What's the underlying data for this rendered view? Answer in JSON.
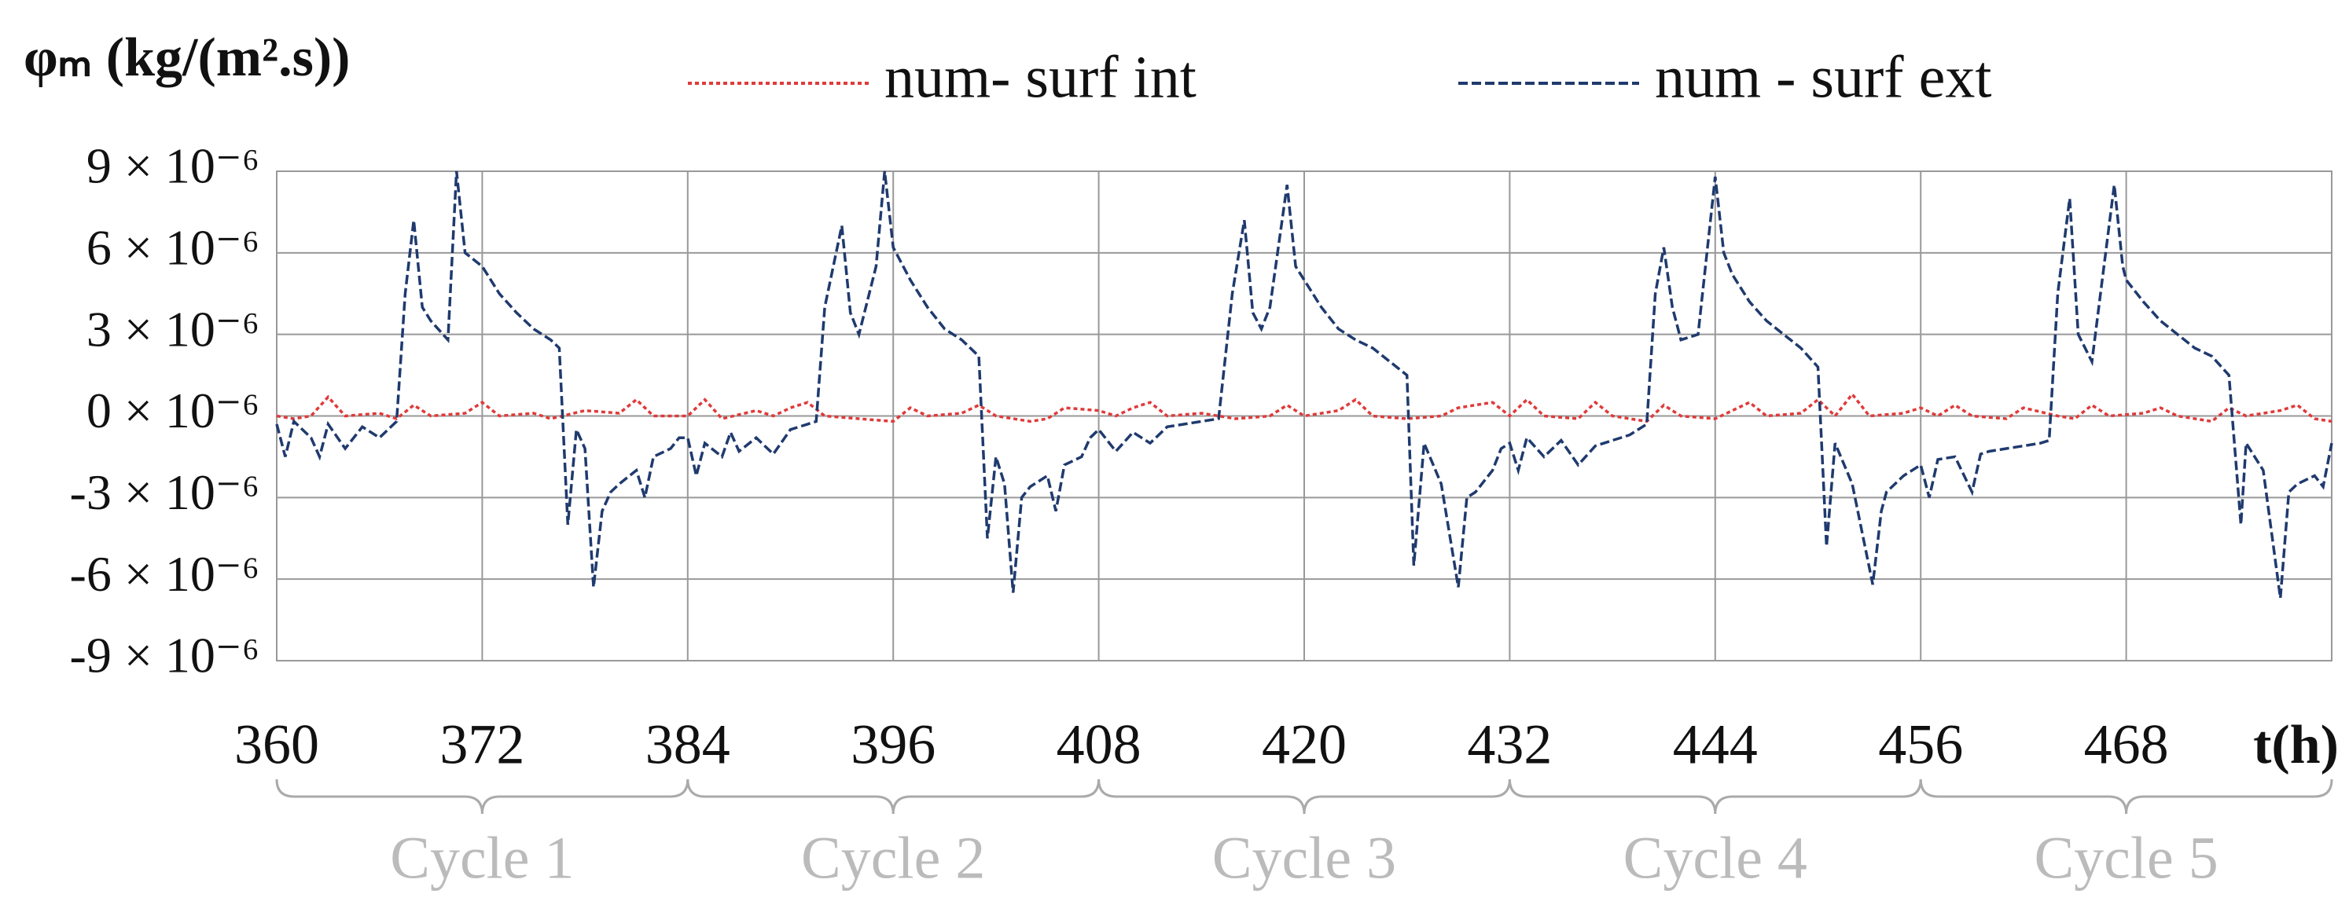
{
  "chart_data": {
    "type": "line",
    "y_label": "φₘ (kg/(m².s))",
    "x_label": "t(h)",
    "xlim": [
      360,
      480
    ],
    "xticks": [
      360,
      372,
      384,
      396,
      408,
      420,
      432,
      444,
      456,
      468
    ],
    "ylim": [
      -9e-06,
      9e-06
    ],
    "yticks": [
      {
        "value": -9e-06,
        "label": "-9 × 10⁻⁶"
      },
      {
        "value": -6e-06,
        "label": "-6 × 10⁻⁶"
      },
      {
        "value": -3e-06,
        "label": "-3 × 10⁻⁶"
      },
      {
        "value": 0,
        "label": "0 × 10⁻⁶"
      },
      {
        "value": 3e-06,
        "label": "3 × 10⁻⁶"
      },
      {
        "value": 6e-06,
        "label": "6 × 10⁻⁶"
      },
      {
        "value": 9e-06,
        "label": "9 × 10⁻⁶"
      }
    ],
    "grid": true,
    "cycles": [
      {
        "label": "Cycle 1",
        "range": [
          360,
          384
        ]
      },
      {
        "label": "Cycle 2",
        "range": [
          384,
          408
        ]
      },
      {
        "label": "Cycle 3",
        "range": [
          408,
          432
        ]
      },
      {
        "label": "Cycle 4",
        "range": [
          432,
          456
        ]
      },
      {
        "label": "Cycle 5",
        "range": [
          456,
          480
        ]
      }
    ],
    "series": [
      {
        "name": "num- surf int",
        "color": "#e03a3a",
        "style": "dotted",
        "x": [
          360,
          361,
          362,
          363,
          364,
          366,
          367,
          368,
          369,
          371,
          372,
          373,
          375,
          376,
          378,
          380,
          381,
          382,
          384,
          385,
          386,
          388,
          389,
          390,
          391,
          392,
          394,
          396,
          397,
          398,
          400,
          401,
          402,
          404,
          405,
          406,
          408,
          409,
          410,
          411,
          412,
          414,
          416,
          418,
          419,
          420,
          422,
          423,
          424,
          426,
          428,
          429,
          431,
          432,
          433,
          434,
          436,
          437,
          438,
          440,
          441,
          442,
          444,
          445,
          446,
          447,
          449,
          450,
          451,
          452,
          453,
          455,
          456,
          457,
          458,
          459,
          461,
          462,
          464,
          465,
          466,
          467,
          469,
          470,
          471,
          473,
          474,
          475,
          477,
          478,
          479,
          480
        ],
        "values": [
          0,
          -1e-07,
          0,
          7e-07,
          0,
          1e-07,
          -1e-07,
          4e-07,
          0,
          1e-07,
          5e-07,
          0,
          1e-07,
          -1e-07,
          2e-07,
          1e-07,
          6e-07,
          0,
          0,
          6e-07,
          -1e-07,
          2e-07,
          0,
          3e-07,
          5e-07,
          0,
          -1e-07,
          -2e-07,
          3e-07,
          0,
          1e-07,
          4e-07,
          0,
          -2e-07,
          -1e-07,
          3e-07,
          2e-07,
          0,
          3e-07,
          5e-07,
          0,
          1e-07,
          -1e-07,
          0,
          4e-07,
          0,
          2e-07,
          6e-07,
          0,
          -1e-07,
          0,
          3e-07,
          5e-07,
          0,
          6e-07,
          0,
          -1e-07,
          5e-07,
          0,
          -2e-07,
          4e-07,
          0,
          -1e-07,
          2e-07,
          5e-07,
          0,
          1e-07,
          6e-07,
          0,
          8e-07,
          0,
          1e-07,
          3e-07,
          0,
          4e-07,
          0,
          -1e-07,
          3e-07,
          0,
          -1e-07,
          4e-07,
          0,
          1e-07,
          3e-07,
          0,
          -2e-07,
          3e-07,
          0,
          2e-07,
          4e-07,
          -1e-07,
          -2e-07
        ]
      },
      {
        "name": "num - surf ext",
        "color": "#1f3a6e",
        "style": "dashed",
        "x": [
          360,
          360.5,
          361,
          362,
          362.5,
          363,
          364,
          365,
          366,
          367,
          367.5,
          368,
          368.5,
          369,
          370,
          370.5,
          371,
          372,
          373,
          374,
          375,
          376,
          376.5,
          377,
          377.5,
          378,
          378.5,
          379,
          379.5,
          380,
          381,
          381.5,
          382,
          383,
          383.5,
          384,
          384.5,
          385,
          386,
          386.5,
          387,
          388,
          389,
          390,
          391,
          391.5,
          392,
          393,
          393.5,
          394,
          395,
          395.5,
          396,
          397,
          398,
          399,
          400,
          401,
          401.5,
          402,
          402.5,
          403,
          403.5,
          404,
          405,
          405.5,
          406,
          407,
          407.5,
          408,
          409,
          410,
          411,
          412,
          413,
          414,
          415,
          415.8,
          416.5,
          417,
          417.5,
          418,
          419,
          419.5,
          420,
          421,
          422,
          423,
          424,
          425,
          426,
          426.4,
          427,
          428,
          429,
          429.5,
          430,
          431,
          431.5,
          432,
          432.5,
          433,
          434,
          435,
          436,
          437,
          438,
          439,
          440,
          440.5,
          441,
          441.5,
          442,
          443,
          444,
          444.5,
          445,
          446,
          447,
          448,
          449,
          450,
          450.5,
          451,
          452,
          453.2,
          453.7,
          454,
          455,
          456,
          456.5,
          457,
          458,
          459,
          459.5,
          460,
          461,
          462,
          463,
          463.5,
          464,
          464.7,
          465.2,
          466,
          466.5,
          467.3,
          467.8,
          468,
          469,
          470,
          471,
          472,
          473,
          474,
          474.7,
          475,
          476,
          477,
          477.5,
          478,
          479,
          479.5,
          480
        ],
        "values": [
          -3e-07,
          -1.5e-06,
          -2e-07,
          -8e-07,
          -1.5e-06,
          -3e-07,
          -1.2e-06,
          -4e-07,
          -8e-07,
          -2e-07,
          4.5e-06,
          7.2e-06,
          4e-06,
          3.5e-06,
          2.8e-06,
          9e-06,
          6e-06,
          5.5e-06,
          4.5e-06,
          3.8e-06,
          3.2e-06,
          2.8e-06,
          2.5e-06,
          -4e-06,
          -5e-07,
          -1.2e-06,
          -6.3e-06,
          -3.5e-06,
          -2.8e-06,
          -2.5e-06,
          -2e-06,
          -3e-06,
          -1.5e-06,
          -1.2e-06,
          -8e-07,
          -8e-07,
          -2.2e-06,
          -1e-06,
          -1.5e-06,
          -6e-07,
          -1.3e-06,
          -8e-07,
          -1.4e-06,
          -5e-07,
          -3e-07,
          -2e-07,
          4e-06,
          7e-06,
          3.8e-06,
          3e-06,
          5.5e-06,
          9e-06,
          6.2e-06,
          5e-06,
          4e-06,
          3.2e-06,
          2.8e-06,
          2.2e-06,
          -4.5e-06,
          -1.5e-06,
          -2.5e-06,
          -6.5e-06,
          -3e-06,
          -2.6e-06,
          -2.2e-06,
          -3.5e-06,
          -1.8e-06,
          -1.5e-06,
          -8e-07,
          -5e-07,
          -1.3e-06,
          -6e-07,
          -1e-06,
          -4e-07,
          -3e-07,
          -2e-07,
          -1e-07,
          4.5e-06,
          7.2e-06,
          3.8e-06,
          3.2e-06,
          4e-06,
          8.5e-06,
          5.5e-06,
          5e-06,
          4e-06,
          3.2e-06,
          2.8e-06,
          2.5e-06,
          2e-06,
          1.5e-06,
          -5.5e-06,
          -1e-06,
          -2.5e-06,
          -6.3e-06,
          -3e-06,
          -2.8e-06,
          -2e-06,
          -1.2e-06,
          -1e-06,
          -2e-06,
          -8e-07,
          -1.5e-06,
          -9e-07,
          -1.8e-06,
          -1.1e-06,
          -9e-07,
          -7e-07,
          -3e-07,
          4.5e-06,
          6.2e-06,
          4e-06,
          2.8e-06,
          3e-06,
          8.8e-06,
          6e-06,
          5.2e-06,
          4.2e-06,
          3.5e-06,
          3e-06,
          2.5e-06,
          1.8e-06,
          -4.8e-06,
          -1e-06,
          -2.5e-06,
          -6.2e-06,
          -3.5e-06,
          -2.8e-06,
          -2.2e-06,
          -1.8e-06,
          -3e-06,
          -1.6e-06,
          -1.5e-06,
          -2.8e-06,
          -1.4e-06,
          -1.3e-06,
          -1.2e-06,
          -1.1e-06,
          -1e-06,
          -9e-07,
          4.5e-06,
          8e-06,
          3e-06,
          2e-06,
          4.5e-06,
          8.5e-06,
          5.5e-06,
          5e-06,
          4.2e-06,
          3.5e-06,
          3e-06,
          2.5e-06,
          2.2e-06,
          1.5e-06,
          -4e-06,
          -1e-06,
          -2e-06,
          -6.7e-06,
          -2.8e-06,
          -2.5e-06,
          -2.2e-06,
          -2.6e-06,
          -1e-06
        ]
      }
    ]
  }
}
